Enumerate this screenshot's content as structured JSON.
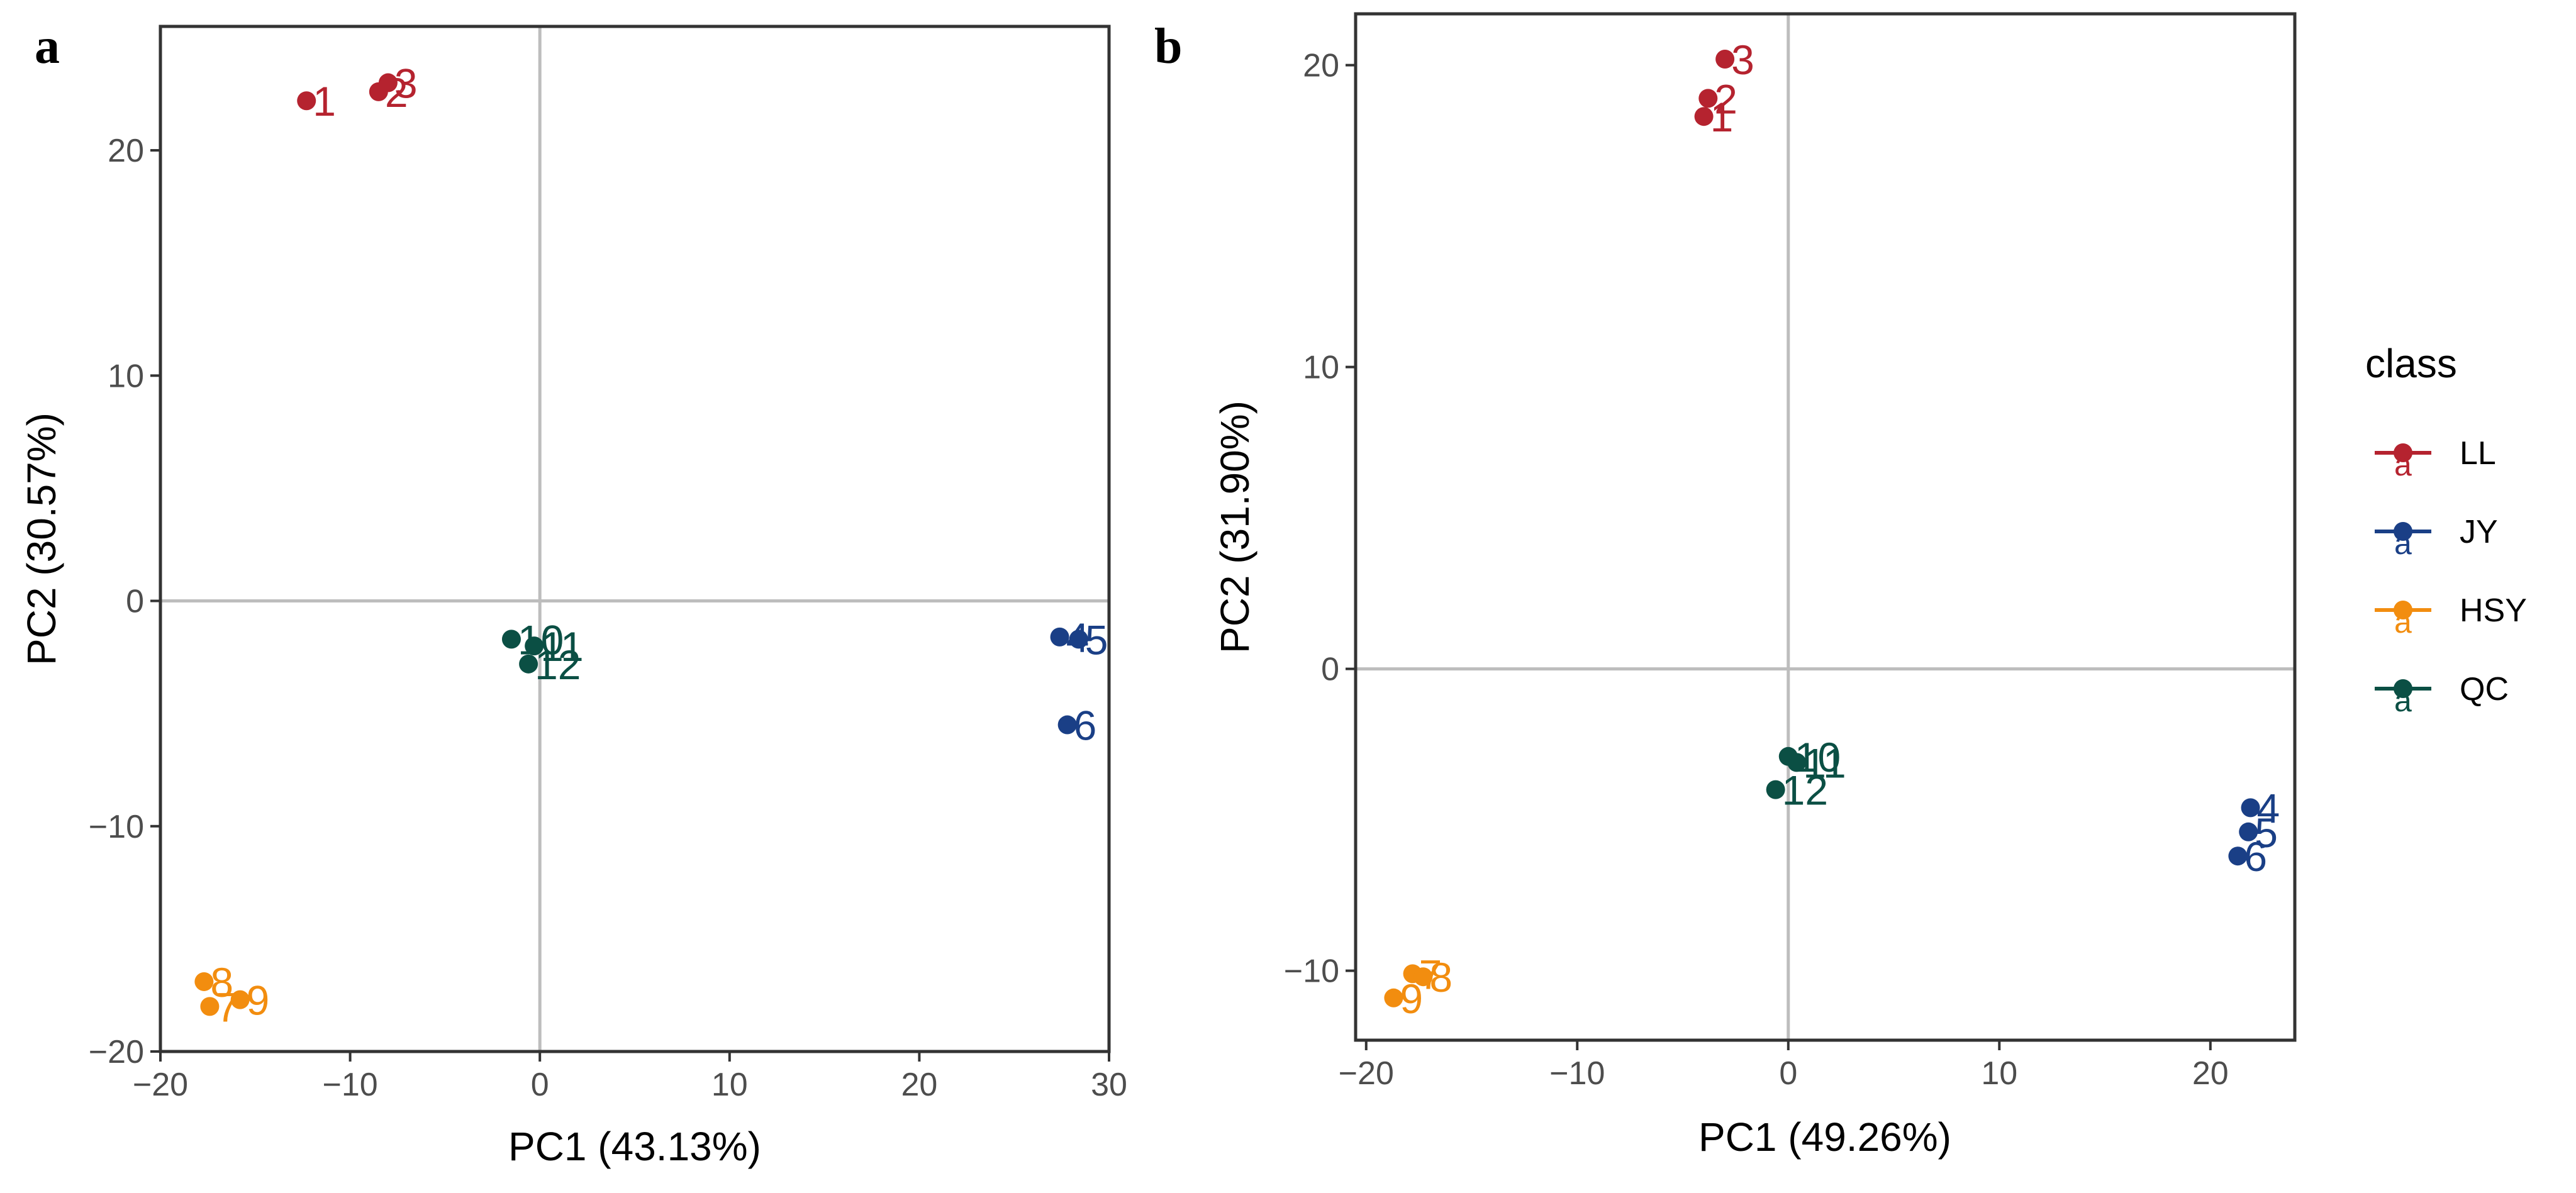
{
  "chart_data": [
    {
      "panel": "a",
      "type": "scatter",
      "xlabel": "PC1 (43.13%)",
      "ylabel": "PC2 (30.57%)",
      "xlim": [
        -20,
        30
      ],
      "ylim": [
        -20,
        25.5
      ],
      "x_ticks": [
        -20,
        -10,
        0,
        10,
        20,
        30
      ],
      "y_ticks": [
        -20,
        -10,
        0,
        10,
        20
      ],
      "x_tick_labels": [
        "−20",
        "−10",
        "0",
        "10",
        "20",
        "30"
      ],
      "y_tick_labels": [
        "−20",
        "−10",
        "0",
        "10",
        "20"
      ],
      "series": [
        {
          "name": "LL",
          "points": [
            {
              "label": "1",
              "x": -12.3,
              "y": 22.2
            },
            {
              "label": "2",
              "x": -8.5,
              "y": 22.6
            },
            {
              "label": "3",
              "x": -8.0,
              "y": 23.0
            }
          ]
        },
        {
          "name": "JY",
          "points": [
            {
              "label": "4",
              "x": 27.4,
              "y": -1.6
            },
            {
              "label": "5",
              "x": 28.4,
              "y": -1.7
            },
            {
              "label": "6",
              "x": 27.8,
              "y": -5.5
            }
          ]
        },
        {
          "name": "HSY",
          "points": [
            {
              "label": "7",
              "x": -17.4,
              "y": -18.0
            },
            {
              "label": "8",
              "x": -17.7,
              "y": -16.9
            },
            {
              "label": "9",
              "x": -15.8,
              "y": -17.7
            }
          ]
        },
        {
          "name": "QC",
          "points": [
            {
              "label": "10",
              "x": -1.5,
              "y": -1.7
            },
            {
              "label": "11",
              "x": -0.3,
              "y": -2.0
            },
            {
              "label": "12",
              "x": -0.6,
              "y": -2.8
            }
          ]
        }
      ]
    },
    {
      "panel": "b",
      "type": "scatter",
      "xlabel": "PC1 (49.26%)",
      "ylabel": "PC2 (31.90%)",
      "xlim": [
        -20.5,
        24
      ],
      "ylim": [
        -12.3,
        21.7
      ],
      "x_ticks": [
        -20,
        -10,
        0,
        10,
        20
      ],
      "y_ticks": [
        -10,
        0,
        10,
        20
      ],
      "x_tick_labels": [
        "−20",
        "−10",
        "0",
        "10",
        "20"
      ],
      "y_tick_labels": [
        "−10",
        "0",
        "10",
        "20"
      ],
      "series": [
        {
          "name": "LL",
          "points": [
            {
              "label": "1",
              "x": -4.0,
              "y": 18.3
            },
            {
              "label": "2",
              "x": -3.8,
              "y": 18.9
            },
            {
              "label": "3",
              "x": -3.0,
              "y": 20.2
            }
          ]
        },
        {
          "name": "JY",
          "points": [
            {
              "label": "4",
              "x": 21.9,
              "y": -4.6
            },
            {
              "label": "5",
              "x": 21.8,
              "y": -5.4
            },
            {
              "label": "6",
              "x": 21.3,
              "y": -6.2
            }
          ]
        },
        {
          "name": "HSY",
          "points": [
            {
              "label": "7",
              "x": -17.8,
              "y": -10.1
            },
            {
              "label": "8",
              "x": -17.3,
              "y": -10.2
            },
            {
              "label": "9",
              "x": -18.7,
              "y": -10.9
            }
          ]
        },
        {
          "name": "QC",
          "points": [
            {
              "label": "10",
              "x": 0.0,
              "y": -2.9
            },
            {
              "label": "11",
              "x": 0.4,
              "y": -3.1
            },
            {
              "label": "12",
              "x": -0.6,
              "y": -4.0
            }
          ]
        }
      ]
    }
  ],
  "legend": {
    "title": "class",
    "key_glyph": "a",
    "entries": [
      {
        "name": "LL",
        "color": "#b5232f"
      },
      {
        "name": "JY",
        "color": "#1a3f86"
      },
      {
        "name": "HSY",
        "color": "#f28d0f"
      },
      {
        "name": "QC",
        "color": "#0b4f44"
      }
    ]
  }
}
